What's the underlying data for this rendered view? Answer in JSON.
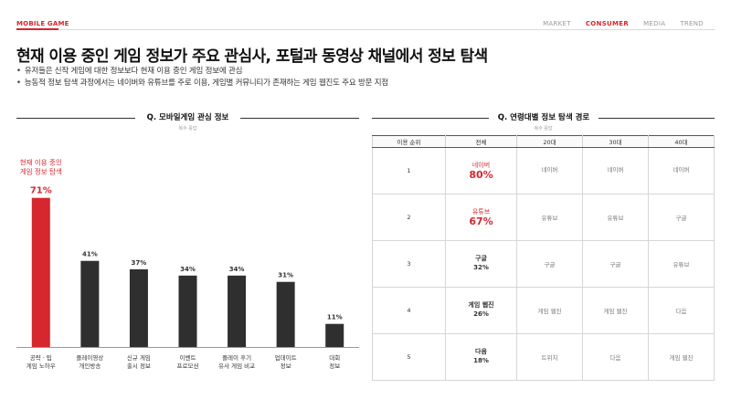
{
  "header": {
    "brand": "MOBILE GAME",
    "nav": [
      "MARKET",
      "CONSUMER",
      "MEDIA",
      "TREND"
    ],
    "nav_active": "CONSUMER"
  },
  "headline": "현재 이용 중인 게임 정보가 주요 관심사, 포털과 동영상 채널에서 정보 탐색",
  "bullets": [
    "유저들은 신작 게임에 대한 정보보다 현재 이용 중인 게임 정보에 관심",
    "능동적 정보 탐색 과정에서는 네이버와 유튜브를 주로 이용, 게임별 커뮤니티가 존재하는 게임 웹진도 주요 방문 지점"
  ],
  "left_panel": {
    "title": "Q. 모바일게임 관심 정보",
    "subtitle": "복수 응답"
  },
  "right_panel": {
    "title": "Q. 연령대별 정보 탐색 경로",
    "subtitle": "복수 응답",
    "columns": [
      "이용 순위",
      "전체",
      "20대",
      "30대",
      "40대"
    ],
    "rows": [
      {
        "rank": "1",
        "all_name": "네이버",
        "all_pct": "80%",
        "highlight": true,
        "age20": "네이버",
        "age30": "네이버",
        "age40": "네이버"
      },
      {
        "rank": "2",
        "all_name": "유튜브",
        "all_pct": "67%",
        "highlight": true,
        "age20": "유튜브",
        "age30": "유튜브",
        "age40": "구글"
      },
      {
        "rank": "3",
        "all_name": "구글",
        "all_pct": "32%",
        "highlight": false,
        "age20": "구글",
        "age30": "구글",
        "age40": "유튜브"
      },
      {
        "rank": "4",
        "all_name": "게임 웹진",
        "all_pct": "26%",
        "highlight": false,
        "age20": "게임 웹진",
        "age30": "게임 웹진",
        "age40": "다음"
      },
      {
        "rank": "5",
        "all_name": "다음",
        "all_pct": "18%",
        "highlight": false,
        "age20": "트위치",
        "age30": "다음",
        "age40": "게임 웹진"
      }
    ]
  },
  "colors": {
    "accent": "#d6262e",
    "bar_dark": "#2f2f2f"
  },
  "chart_data": {
    "type": "bar",
    "categories": [
      [
        "공략 · 팁",
        "게임 노하우"
      ],
      [
        "플레이영상",
        "개인방송"
      ],
      [
        "신규 게임",
        "출시 정보"
      ],
      [
        "이벤트",
        "프로모션"
      ],
      [
        "플레이 후기",
        "유사 게임 비교"
      ],
      [
        "업데이트",
        "정보"
      ],
      [
        "대회",
        "정보"
      ]
    ],
    "values": [
      71,
      41,
      37,
      34,
      34,
      31,
      11
    ],
    "value_labels": [
      "71%",
      "41%",
      "37%",
      "34%",
      "34%",
      "31%",
      "11%"
    ],
    "highlight_index": 0,
    "highlight_note": [
      "현재 이용 중인",
      "게임 정보 탐색"
    ],
    "ylim": [
      0,
      100
    ],
    "grid": false
  }
}
